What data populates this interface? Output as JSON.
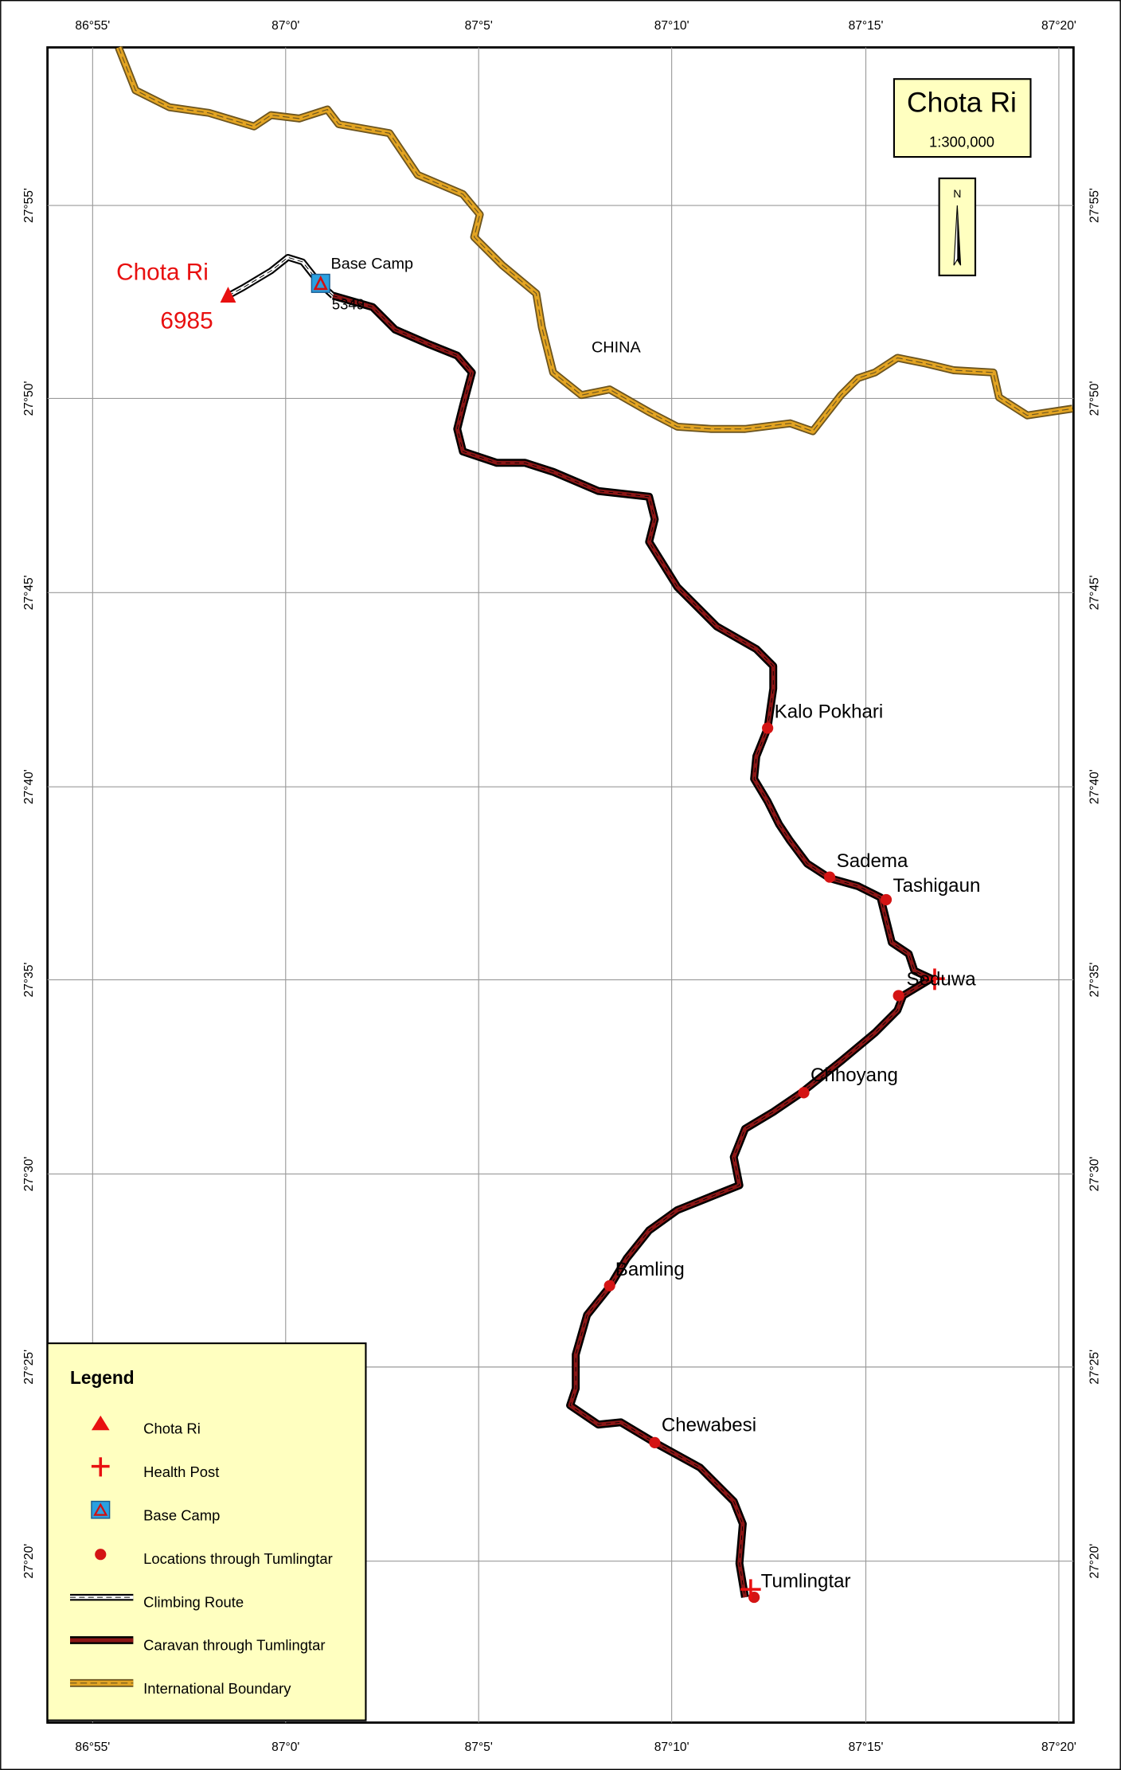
{
  "title": "Chota Ri",
  "scale": "1:300,000",
  "north": "N",
  "grid": {
    "top_labels": [
      "86°55'",
      "87°0'",
      "87°5'",
      "87°10'",
      "87°15'",
      "87°20'"
    ],
    "bottom_labels": [
      "86°55'",
      "87°0'",
      "87°5'",
      "87°10'",
      "87°15'",
      "87°20'"
    ],
    "left_labels": [
      "27°55'",
      "27°50'",
      "27°45'",
      "27°40'",
      "27°35'",
      "27°30'",
      "27°25'",
      "27°20'"
    ],
    "right_labels": [
      "27°55'",
      "27°50'",
      "27°45'",
      "27°40'",
      "27°35'",
      "27°30'",
      "27°25'",
      "27°20'"
    ]
  },
  "peak": {
    "name": "Chota Ri",
    "elevation": 6985
  },
  "base_camp": {
    "name": "Base Camp",
    "elevation": 5349
  },
  "region": "CHINA",
  "places": [
    "Kalo Pokhari",
    "Sadema",
    "Tashigaun",
    "Seduwa",
    "Chhoyang",
    "Bamling",
    "Chewabesi",
    "Tumlingtar"
  ],
  "legend": {
    "title": "Legend",
    "items": [
      "Chota Ri",
      "Health Post",
      "Base Camp",
      "Locations through Tumlingtar",
      "Climbing Route",
      "Caravan through Tumlingtar",
      "International Boundary"
    ]
  }
}
